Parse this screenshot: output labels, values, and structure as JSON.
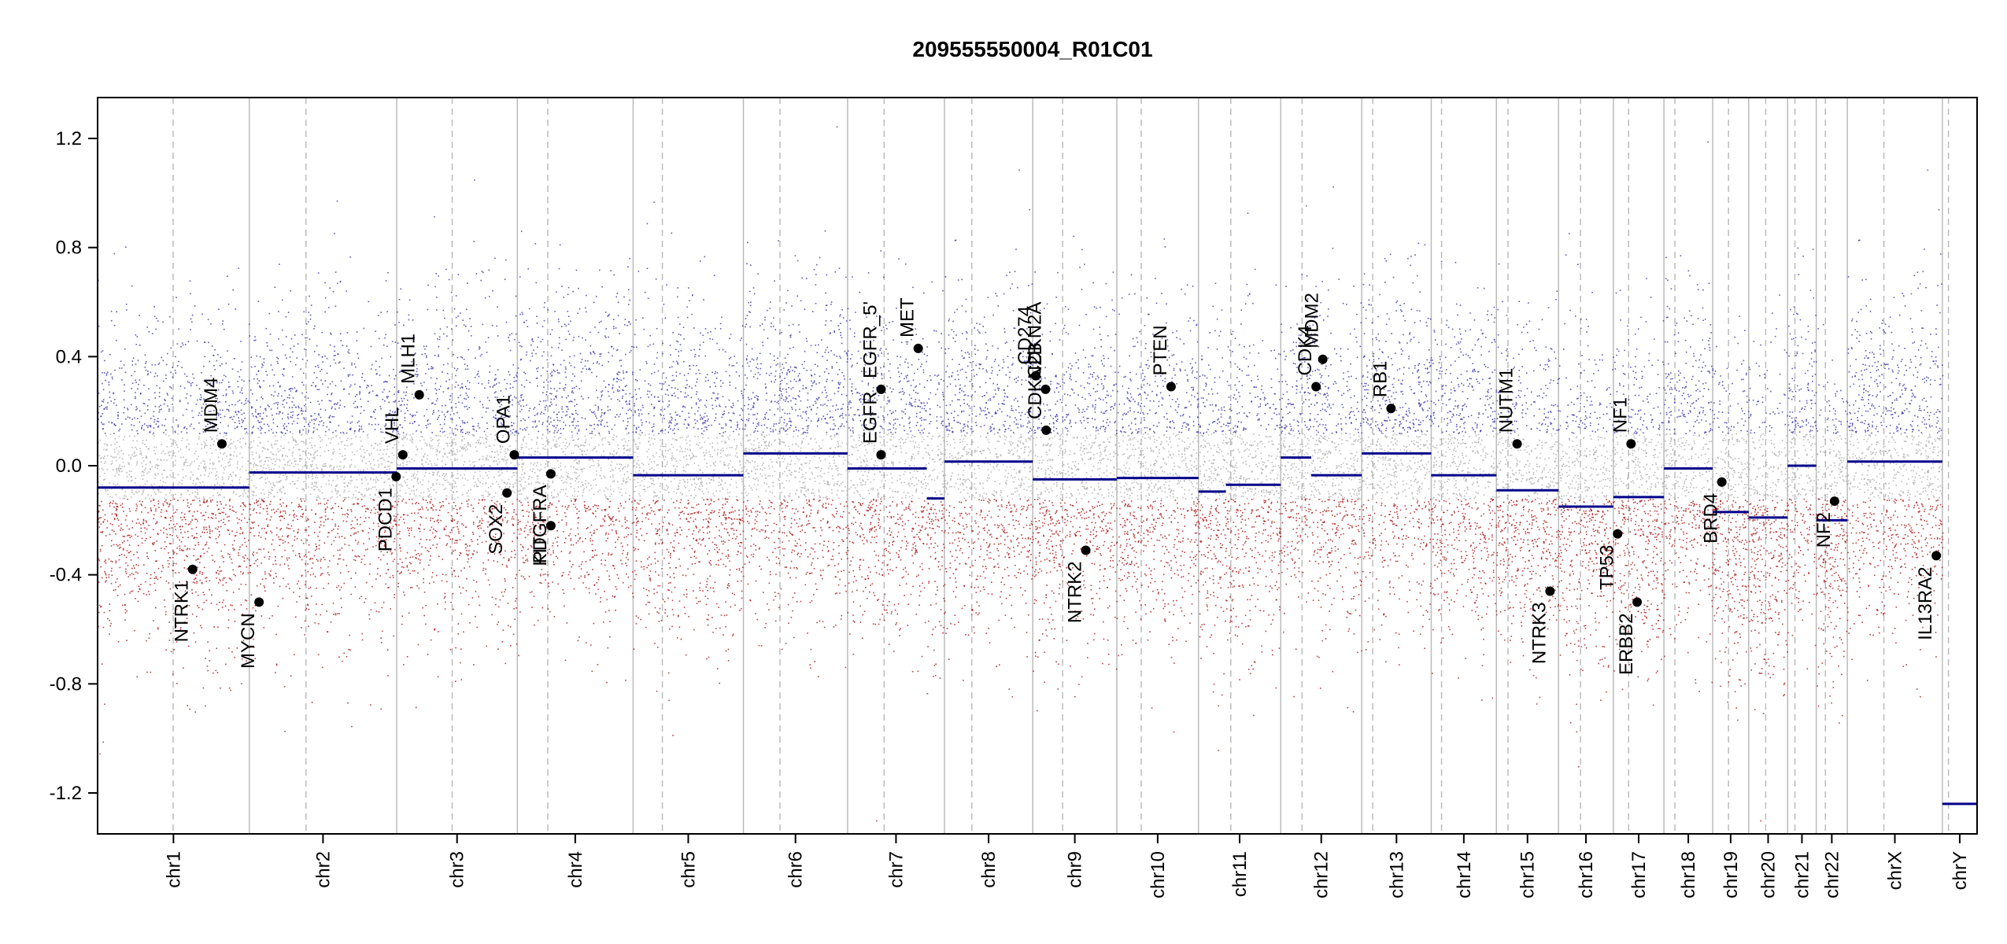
{
  "chart_data": {
    "type": "scatter",
    "title": "209555550004_R01C01",
    "xlabel": "",
    "ylabel": "",
    "ylim": [
      -1.35,
      1.35
    ],
    "yticks": [
      {
        "value": 1.2,
        "label": "1.2"
      },
      {
        "value": 0.8,
        "label": "0.8"
      },
      {
        "value": 0.4,
        "label": "0.4"
      },
      {
        "value": 0.0,
        "label": "0.0"
      },
      {
        "value": -0.4,
        "label": "-0.4"
      },
      {
        "value": -0.8,
        "label": "-0.8"
      },
      {
        "value": -1.2,
        "label": "-1.2"
      }
    ],
    "colors": {
      "gain": "#3333aa",
      "neutral": "#aaaaaa",
      "loss": "#aa1111",
      "segment": "#00008b",
      "boundary": "#bbbbbb",
      "centromere": "#bbbbbb"
    },
    "chromosomes": [
      {
        "name": "chr1",
        "length": 249,
        "centromere": 124,
        "segments": [
          {
            "start": 0,
            "end": 249,
            "value": -0.08
          }
        ]
      },
      {
        "name": "chr2",
        "length": 242,
        "centromere": 93,
        "segments": [
          {
            "start": 0,
            "end": 242,
            "value": -0.025
          }
        ]
      },
      {
        "name": "chr3",
        "length": 198,
        "centromere": 91,
        "segments": [
          {
            "start": 0,
            "end": 198,
            "value": -0.01
          }
        ]
      },
      {
        "name": "chr4",
        "length": 190,
        "centromere": 50,
        "segments": [
          {
            "start": 0,
            "end": 190,
            "value": 0.03
          }
        ]
      },
      {
        "name": "chr5",
        "length": 181,
        "centromere": 48,
        "segments": [
          {
            "start": 0,
            "end": 181,
            "value": -0.035
          }
        ]
      },
      {
        "name": "chr6",
        "length": 171,
        "centromere": 60,
        "segments": [
          {
            "start": 0,
            "end": 171,
            "value": 0.045
          }
        ]
      },
      {
        "name": "chr7",
        "length": 159,
        "centromere": 60,
        "segments": [
          {
            "start": 0,
            "end": 130,
            "value": -0.01
          },
          {
            "start": 130,
            "end": 159,
            "value": -0.12
          }
        ]
      },
      {
        "name": "chr8",
        "length": 145,
        "centromere": 45,
        "segments": [
          {
            "start": 0,
            "end": 145,
            "value": 0.015
          }
        ]
      },
      {
        "name": "chr9",
        "length": 138,
        "centromere": 49,
        "segments": [
          {
            "start": 0,
            "end": 138,
            "value": -0.05
          }
        ]
      },
      {
        "name": "chr10",
        "length": 134,
        "centromere": 40,
        "segments": [
          {
            "start": 0,
            "end": 134,
            "value": -0.045
          }
        ]
      },
      {
        "name": "chr11",
        "length": 135,
        "centromere": 53,
        "segments": [
          {
            "start": 0,
            "end": 45,
            "value": -0.095
          },
          {
            "start": 45,
            "end": 135,
            "value": -0.07
          }
        ]
      },
      {
        "name": "chr12",
        "length": 133,
        "centromere": 35,
        "segments": [
          {
            "start": 0,
            "end": 50,
            "value": 0.03
          },
          {
            "start": 50,
            "end": 133,
            "value": -0.035
          }
        ]
      },
      {
        "name": "chr13",
        "length": 114,
        "centromere": 18,
        "segments": [
          {
            "start": 0,
            "end": 114,
            "value": 0.045
          }
        ]
      },
      {
        "name": "chr14",
        "length": 107,
        "centromere": 17,
        "segments": [
          {
            "start": 0,
            "end": 107,
            "value": -0.035
          }
        ]
      },
      {
        "name": "chr15",
        "length": 102,
        "centromere": 19,
        "segments": [
          {
            "start": 0,
            "end": 102,
            "value": -0.09
          }
        ]
      },
      {
        "name": "chr16",
        "length": 90,
        "centromere": 36,
        "segments": [
          {
            "start": 0,
            "end": 90,
            "value": -0.15
          }
        ]
      },
      {
        "name": "chr17",
        "length": 83,
        "centromere": 25,
        "segments": [
          {
            "start": 0,
            "end": 83,
            "value": -0.115
          }
        ]
      },
      {
        "name": "chr18",
        "length": 80,
        "centromere": 18,
        "segments": [
          {
            "start": 0,
            "end": 80,
            "value": -0.01
          }
        ]
      },
      {
        "name": "chr19",
        "length": 59,
        "centromere": 26,
        "segments": [
          {
            "start": 0,
            "end": 59,
            "value": -0.17
          }
        ]
      },
      {
        "name": "chr20",
        "length": 64,
        "centromere": 28,
        "segments": [
          {
            "start": 0,
            "end": 64,
            "value": -0.19
          }
        ]
      },
      {
        "name": "chr21",
        "length": 47,
        "centromere": 12,
        "segments": [
          {
            "start": 0,
            "end": 47,
            "value": 0.0
          }
        ]
      },
      {
        "name": "chr22",
        "length": 51,
        "centromere": 15,
        "segments": [
          {
            "start": 0,
            "end": 51,
            "value": -0.2
          }
        ]
      },
      {
        "name": "chrX",
        "length": 156,
        "centromere": 60,
        "segments": [
          {
            "start": 0,
            "end": 156,
            "value": 0.015
          }
        ]
      },
      {
        "name": "chrY",
        "length": 57,
        "centromere": 10,
        "segments": [
          {
            "start": 0,
            "end": 57,
            "value": -1.24
          }
        ]
      }
    ],
    "genes": [
      {
        "name": "NTRK1",
        "chr": "chr1",
        "pos": 156,
        "value": -0.38
      },
      {
        "name": "MDM4",
        "chr": "chr1",
        "pos": 204,
        "value": 0.08
      },
      {
        "name": "MYCN",
        "chr": "chr2",
        "pos": 16,
        "value": -0.5
      },
      {
        "name": "PDCD1",
        "chr": "chr2",
        "pos": 241,
        "value": -0.04
      },
      {
        "name": "VHL",
        "chr": "chr3",
        "pos": 10,
        "value": 0.04
      },
      {
        "name": "MLH1",
        "chr": "chr3",
        "pos": 37,
        "value": 0.26
      },
      {
        "name": "SOX2",
        "chr": "chr3",
        "pos": 181,
        "value": -0.1
      },
      {
        "name": "OPA1",
        "chr": "chr3",
        "pos": 193,
        "value": 0.04
      },
      {
        "name": "PDGFRA",
        "chr": "chr4",
        "pos": 55,
        "value": -0.03
      },
      {
        "name": "KIT",
        "chr": "chr4",
        "pos": 55,
        "value": -0.22
      },
      {
        "name": "EGFR_5'",
        "chr": "chr7",
        "pos": 55,
        "value": 0.28
      },
      {
        "name": "EGFR",
        "chr": "chr7",
        "pos": 55,
        "value": 0.04
      },
      {
        "name": "MET",
        "chr": "chr7",
        "pos": 116,
        "value": 0.43
      },
      {
        "name": "CD274",
        "chr": "chr9",
        "pos": 5,
        "value": 0.33
      },
      {
        "name": "CDKN2A",
        "chr": "chr9",
        "pos": 21,
        "value": 0.28
      },
      {
        "name": "CDKN2B",
        "chr": "chr9",
        "pos": 22,
        "value": 0.13
      },
      {
        "name": "NTRK2",
        "chr": "chr9",
        "pos": 87,
        "value": -0.31
      },
      {
        "name": "PTEN",
        "chr": "chr10",
        "pos": 89,
        "value": 0.29
      },
      {
        "name": "CDK4",
        "chr": "chr12",
        "pos": 58,
        "value": 0.29
      },
      {
        "name": "MDM2",
        "chr": "chr12",
        "pos": 69,
        "value": 0.39
      },
      {
        "name": "RB1",
        "chr": "chr13",
        "pos": 48,
        "value": 0.21
      },
      {
        "name": "NUTM1",
        "chr": "chr15",
        "pos": 34,
        "value": 0.08
      },
      {
        "name": "NTRK3",
        "chr": "chr15",
        "pos": 88,
        "value": -0.46
      },
      {
        "name": "TP53",
        "chr": "chr17",
        "pos": 7,
        "value": -0.25
      },
      {
        "name": "NF1",
        "chr": "chr17",
        "pos": 29,
        "value": 0.08
      },
      {
        "name": "ERBB2",
        "chr": "chr17",
        "pos": 39,
        "value": -0.5
      },
      {
        "name": "BRD4",
        "chr": "chr19",
        "pos": 15,
        "value": -0.06
      },
      {
        "name": "NF2",
        "chr": "chr22",
        "pos": 30,
        "value": -0.13
      },
      {
        "name": "IL13RA2",
        "chr": "chrX",
        "pos": 146,
        "value": -0.33
      }
    ]
  }
}
